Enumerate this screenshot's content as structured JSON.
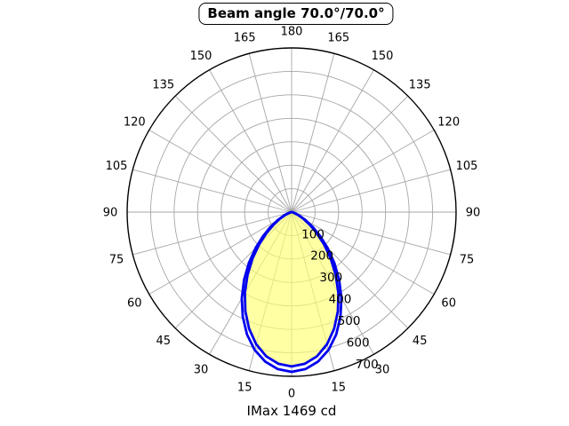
{
  "chart_data": {
    "type": "polar",
    "title": "Beam angle 70.0°/70.0°",
    "footer": "IMax 1469 cd",
    "imax_cd": 1469,
    "beam_angle_deg": [
      70.0,
      70.0
    ],
    "angle_tick_step_deg": 15,
    "angle_tick_labels": [
      "0",
      "15",
      "30",
      "45",
      "60",
      "75",
      "90",
      "105",
      "120",
      "135",
      "150",
      "165",
      "180"
    ],
    "radial_tick_labels": [
      "100",
      "200",
      "300",
      "400",
      "500",
      "600",
      "700"
    ],
    "r_min": 0,
    "r_max": 700,
    "grid": true,
    "legend": false,
    "series": [
      {
        "name": "beam-curve-inner",
        "angles_deg": [
          0,
          5,
          10,
          15,
          20,
          25,
          30,
          35,
          40,
          45,
          50,
          55,
          60,
          65,
          70,
          75,
          80,
          85,
          90
        ],
        "values": [
          658,
          649,
          624,
          583,
          529,
          466,
          398,
          327,
          259,
          196,
          140,
          94,
          58,
          32,
          15,
          6,
          1,
          0,
          0
        ],
        "stroke": "#0000ee",
        "fill": "#ffff73",
        "fill_opacity": 0.65
      },
      {
        "name": "beam-curve-outer",
        "angles_deg": [
          0,
          5,
          10,
          15,
          20,
          25,
          30,
          35,
          40,
          45,
          50,
          55,
          60,
          65,
          70,
          75,
          80,
          85,
          90
        ],
        "values": [
          681,
          672,
          647,
          608,
          555,
          492,
          424,
          353,
          283,
          217,
          158,
          109,
          69,
          40,
          20,
          8,
          2,
          0,
          0
        ],
        "stroke": "#0000ee",
        "fill": "none",
        "fill_opacity": 0
      }
    ],
    "colors": {
      "grid": "#a6a6a6",
      "outline": "#000000",
      "curve": "#0000ee",
      "fill": "#ffff73",
      "background": "#ffffff"
    }
  }
}
